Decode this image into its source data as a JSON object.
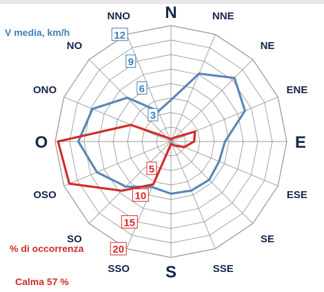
{
  "chart_data": {
    "type": "radar",
    "directions": [
      "N",
      "NNE",
      "NE",
      "ENE",
      "E",
      "ESE",
      "SE",
      "SSE",
      "S",
      "SSO",
      "SO",
      "OSO",
      "O",
      "ONO",
      "NO",
      "NNO"
    ],
    "series": [
      {
        "name": "V media, km/h",
        "color": "#5b86b6",
        "scale_max": 12,
        "ticks": [
          "3",
          "6",
          "9",
          "12"
        ],
        "values": [
          4.3,
          7.6,
          9.3,
          8.3,
          5.6,
          5.4,
          5.6,
          5.5,
          5.4,
          5.1,
          6.6,
          8.3,
          9.6,
          8.8,
          6.4,
          3.4
        ]
      },
      {
        "name": "% di occorrenza",
        "color": "#d42a2a",
        "scale_max": 20,
        "ticks": [
          "5",
          "10",
          "15",
          "20"
        ],
        "values": [
          0.5,
          0.5,
          1.0,
          4.5,
          4.0,
          2.5,
          1.0,
          0.5,
          0.5,
          8.0,
          12.0,
          19.0,
          19.5,
          7.5,
          1.0,
          0.5
        ]
      }
    ],
    "calm_label": "Calma 57 %"
  }
}
